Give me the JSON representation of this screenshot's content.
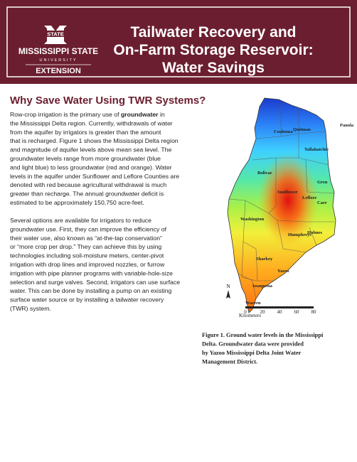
{
  "header": {
    "logo_top": "STATE",
    "logo_name": "MISSISSIPPI STATE",
    "logo_university": "UNIVERSITY",
    "logo_unit": "EXTENSION",
    "title_lines": [
      "Tailwater Recovery and",
      "On-Farm Storage Reservoir:",
      "Water Savings"
    ]
  },
  "section": {
    "heading": "Why Save Water Using TWR Systems?",
    "lead": [
      "Row-crop irrigation is the primary use of ",
      "groundwater",
      " in"
    ],
    "paragraph1": [
      "the Mississippi Delta region. Currently, withdrawals of water",
      "from the aquifer by irrigators is greater than the amount",
      "that is recharged. Figure 1 shows the Mississippi Delta region",
      "and magnitude of aquifer levels above mean sea level. The",
      "groundwater levels range from more groundwater (blue",
      "and light blue) to less groundwater (red and orange). Water",
      "levels in the aquifer under Sunflower and Leflore Counties are",
      "denoted with red because agricultural withdrawal is much",
      "greater than recharge. The annual groundwater deficit is",
      "estimated to be approximately 150,750 acre-feet."
    ],
    "paragraph2": [
      "Several options are available for irrigators to reduce",
      "groundwater use. First, they can improve the efficiency of",
      "their water use, also known as “at-the-tap conservation”",
      "or “more crop per drop.” They can achieve this by using",
      "technologies including soil-moisture meters, center-pivot",
      "irrigation with drop lines and improved nozzles, or furrow",
      "irrigation with pipe planner programs with variable-hole-size",
      "selection and surge valves. Second, irrigators can use surface",
      "water. This can be done by installing a pump on an existing",
      "surface water source or by installing a tailwater recovery",
      "(TWR) system."
    ]
  },
  "map": {
    "counties": [
      "Panola",
      "Coahoma",
      "Quitman",
      "Tallahatchie",
      "Bolivar",
      "Sunflower",
      "Leflore",
      "Gren",
      "Carr",
      "Washington",
      "Humphreys",
      "Holmes",
      "Sharkey",
      "Yazoo",
      "Issaquena",
      "Warren"
    ],
    "north": "N",
    "scale_ticks": [
      0,
      20,
      40,
      60,
      80
    ],
    "scale_unit": "Kilometers"
  },
  "caption": [
    "Figure 1. Ground water levels in the Mississippi",
    "Delta. Groundwater data were provided",
    "by Yazoo Mississippi Delta Joint Water",
    "Management District."
  ]
}
